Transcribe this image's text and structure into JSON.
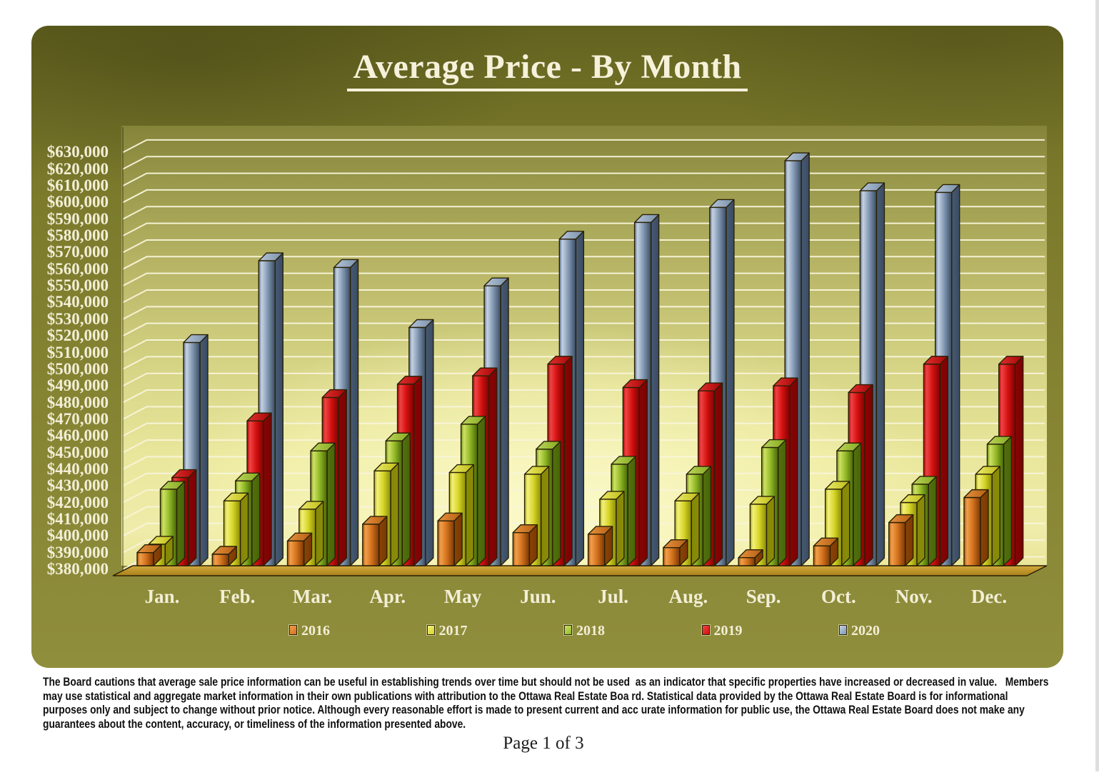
{
  "title": "Average Price - By Month",
  "chart_data": {
    "type": "bar",
    "title": "Average Price - By Month",
    "categories": [
      "Jan.",
      "Feb.",
      "Mar.",
      "Apr.",
      "May",
      "Jun.",
      "Jul.",
      "Aug.",
      "Sep.",
      "Oct.",
      "Nov.",
      "Dec."
    ],
    "series": [
      {
        "name": "2016",
        "color": "#d2711d",
        "values": [
          390000,
          389000,
          397000,
          407000,
          409000,
          402000,
          401000,
          393000,
          387000,
          394000,
          408000,
          423000
        ],
        "colors": {
          "edge": "#a8560f",
          "light": "#f29f4b",
          "mid": "#d2711d",
          "dark": "#7a3804",
          "top1": "#e8923f",
          "top2": "#b25e12",
          "side": "#8a4406"
        }
      },
      {
        "name": "2017",
        "color": "#d6d528",
        "values": [
          395000,
          421000,
          416000,
          439000,
          438000,
          437000,
          422000,
          421000,
          419000,
          428000,
          420000,
          437000
        ],
        "colors": {
          "edge": "#a9aa12",
          "light": "#f4f07c",
          "mid": "#d6d528",
          "dark": "#8b8d06",
          "top1": "#eeeb6d",
          "top2": "#bbbb14",
          "side": "#84860a"
        }
      },
      {
        "name": "2018",
        "color": "#90b826",
        "values": [
          428000,
          433000,
          451000,
          457000,
          467000,
          452000,
          443000,
          437000,
          453000,
          451000,
          431000,
          455000
        ],
        "colors": {
          "edge": "#6f9418",
          "light": "#cfe164",
          "mid": "#90b826",
          "dark": "#476608",
          "top1": "#bdd65c",
          "top2": "#82a81e",
          "side": "#52700e"
        }
      },
      {
        "name": "2019",
        "color": "#d31010",
        "values": [
          435000,
          469000,
          483000,
          491000,
          496000,
          503000,
          489000,
          487000,
          490000,
          486000,
          503000,
          503000
        ],
        "colors": {
          "edge": "#ac0909",
          "light": "#ef4444",
          "mid": "#d31010",
          "dark": "#7d0202",
          "top1": "#e23030",
          "top2": "#a30505",
          "side": "#880404"
        }
      },
      {
        "name": "2020",
        "color": "#8197b1",
        "values": [
          516000,
          565000,
          561000,
          525000,
          550000,
          578000,
          588000,
          597000,
          625000,
          607000,
          606000,
          null
        ],
        "colors": {
          "edge": "#5c7290",
          "light": "#c5d2e3",
          "mid": "#8197b1",
          "dark": "#3a4c64",
          "top1": "#b7c6d9",
          "top2": "#7890aa",
          "side": "#485a72"
        }
      }
    ],
    "y_min": 380000,
    "y_max": 630000,
    "y_step": 10000,
    "y_tick_prefix": "$",
    "grid": true,
    "legend_position": "bottom",
    "colors": {
      "grid": "#f8f4da",
      "floor_light": "#d2a93c",
      "floor_dark": "#aa7f1a",
      "outline": "#2a2106",
      "axis_text": "#f3eed6"
    }
  },
  "footer": {
    "lines": [
      "The Board cautions that average sale price information can be useful in establishing trends over time but should not be used  as an indicator that specific properties have increased or decreased in value.   Members",
      "may use statistical and aggregate market information in their own publications with attribution to the Ottawa Real Estate Boa rd. Statistical data provided by the Ottawa Real Estate Board is for informational",
      "purposes only and subject to change without prior notice. Although every reasonable effort is made to present current and acc urate information for public use, the Ottawa Real Estate Board does not make any",
      "guarantees about the content, accuracy, or timeliness of the information presented above."
    ],
    "page_number": "Page 1 of 3"
  }
}
